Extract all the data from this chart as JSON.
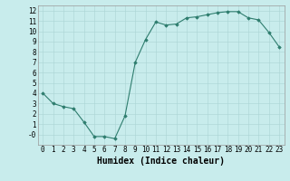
{
  "x": [
    0,
    1,
    2,
    3,
    4,
    5,
    6,
    7,
    8,
    9,
    10,
    11,
    12,
    13,
    14,
    15,
    16,
    17,
    18,
    19,
    20,
    21,
    22,
    23
  ],
  "y": [
    4.0,
    3.0,
    2.7,
    2.5,
    1.2,
    -0.2,
    -0.2,
    -0.4,
    1.8,
    7.0,
    9.2,
    10.9,
    10.6,
    10.7,
    11.3,
    11.4,
    11.6,
    11.8,
    11.9,
    11.9,
    11.3,
    11.1,
    9.9,
    8.5
  ],
  "line_color": "#2e7d6e",
  "marker": "D",
  "marker_size": 1.8,
  "bg_color": "#c8ecec",
  "grid_color": "#aad4d4",
  "xlabel": "Humidex (Indice chaleur)",
  "xlim": [
    -0.5,
    23.5
  ],
  "ylim": [
    -1.0,
    12.5
  ],
  "yticks": [
    0,
    1,
    2,
    3,
    4,
    5,
    6,
    7,
    8,
    9,
    10,
    11,
    12
  ],
  "ytick_labels": [
    "-0",
    "1",
    "2",
    "3",
    "4",
    "5",
    "6",
    "7",
    "8",
    "9",
    "10",
    "11",
    "12"
  ],
  "xticks": [
    0,
    1,
    2,
    3,
    4,
    5,
    6,
    7,
    8,
    9,
    10,
    11,
    12,
    13,
    14,
    15,
    16,
    17,
    18,
    19,
    20,
    21,
    22,
    23
  ],
  "tick_font_size": 5.5,
  "label_font_size": 7.0
}
